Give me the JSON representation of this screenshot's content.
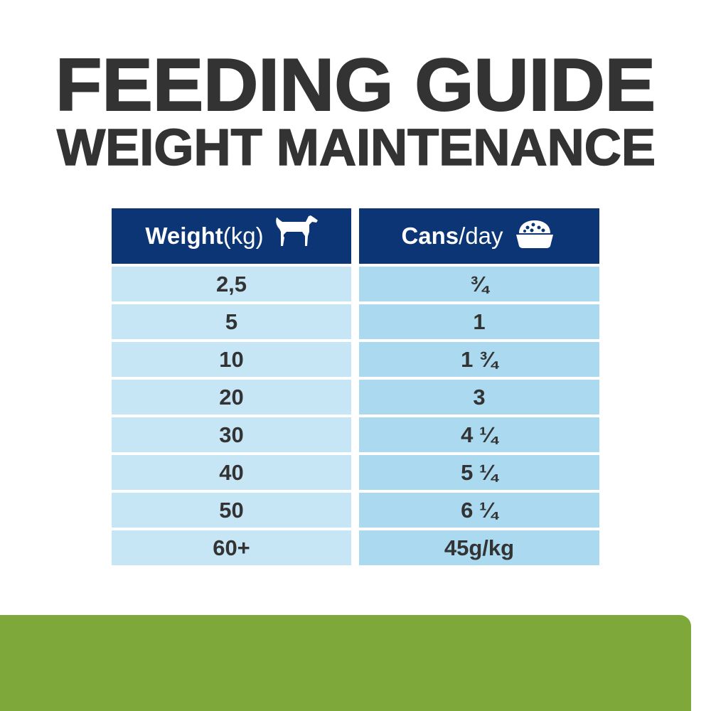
{
  "title": {
    "line1": "FEEDING GUIDE",
    "line2": "WEIGHT MAINTENANCE"
  },
  "table": {
    "headers": [
      {
        "bold": "Weight",
        "light": " (kg)",
        "icon": "dog-icon"
      },
      {
        "bold": "Cans",
        "light": "/day",
        "icon": "food-bowl-icon"
      }
    ],
    "rows": [
      {
        "weight": "2,5",
        "cans": "¾"
      },
      {
        "weight": "5",
        "cans": "1"
      },
      {
        "weight": "10",
        "cans": "1 ¾"
      },
      {
        "weight": "20",
        "cans": "3"
      },
      {
        "weight": "30",
        "cans": "4 ¼"
      },
      {
        "weight": "40",
        "cans": "5 ¼"
      },
      {
        "weight": "50",
        "cans": "6 ¼"
      },
      {
        "weight": "60+",
        "cans": "45g/kg"
      }
    ]
  },
  "colors": {
    "header": "#0b3574",
    "left_cell": "#c6e6f6",
    "right_cell": "#abd9ef",
    "footer_band": "#7fa83a",
    "text": "#333333"
  }
}
